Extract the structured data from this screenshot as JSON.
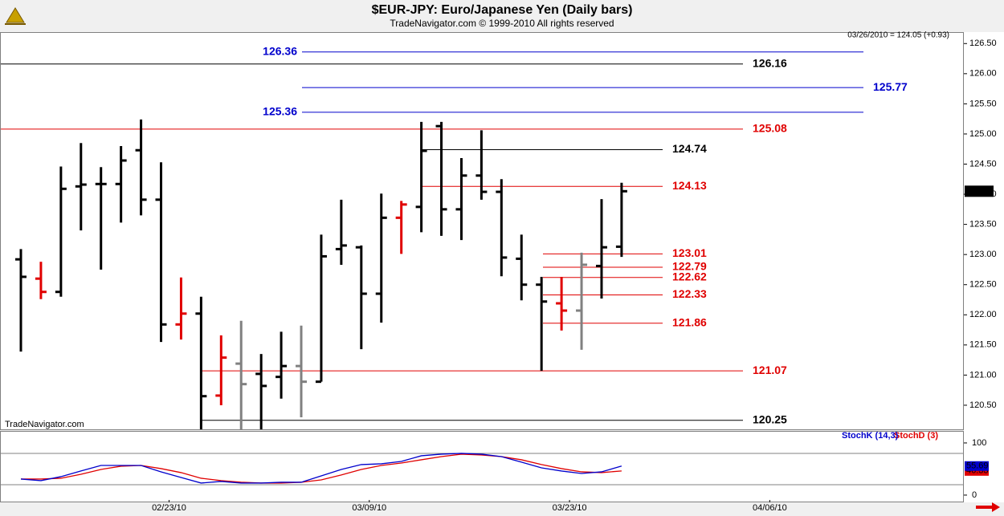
{
  "chart_data": [
    {
      "type": "ohlc",
      "title": "$EUR-JPY:  Euro/Japanese Yen  (Daily bars)",
      "subtitle": "TradeNavigator.com © 1999-2010 All rights reserved",
      "info": "03/26/2010 = 124.05 (+0.93)",
      "watermark": "TradeNavigator.com",
      "last_price": 124.05,
      "ylim": [
        120.1,
        126.69
      ],
      "yticks": [
        {
          "value": 120.5,
          "label": "120.50"
        },
        {
          "value": 121,
          "label": "121.00"
        },
        {
          "value": 121.5,
          "label": "121.50"
        },
        {
          "value": 122,
          "label": "122.00"
        },
        {
          "value": 122.5,
          "label": "122.50"
        },
        {
          "value": 123,
          "label": "123.00"
        },
        {
          "value": 123.5,
          "label": "123.50"
        },
        {
          "value": 124,
          "label": "124.00"
        },
        {
          "value": 124.5,
          "label": "124.50"
        },
        {
          "value": 125,
          "label": "125.00"
        },
        {
          "value": 125.5,
          "label": "125.50"
        },
        {
          "value": 126,
          "label": "126.00"
        },
        {
          "value": 126.5,
          "label": "126.50"
        }
      ],
      "xticks": [
        {
          "value": 7.4,
          "label": "02/23/10"
        },
        {
          "value": 17.4,
          "label": "03/09/10"
        },
        {
          "value": 27.4,
          "label": "03/23/10"
        },
        {
          "value": 37.4,
          "label": "04/06/10"
        }
      ],
      "bars": {
        "open": [
          122.92,
          122.6,
          122.38,
          124.13,
          124.17,
          124.17,
          124.73,
          123.91,
          121.84,
          122.02,
          120.66,
          121.19,
          121.02,
          120.97,
          121.15,
          120.89,
          123.09,
          123.12,
          122.35,
          123.61,
          123.79,
          125.13,
          123.75,
          124.31,
          124.04,
          122.93,
          122.5,
          122.19,
          122.07,
          122.81,
          123.13
        ],
        "high": [
          123.09,
          122.88,
          124.46,
          124.85,
          124.45,
          124.8,
          125.24,
          124.53,
          122.62,
          122.3,
          121.66,
          121.9,
          121.35,
          121.72,
          121.82,
          123.33,
          123.91,
          123.15,
          124.01,
          123.89,
          125.2,
          125.2,
          124.6,
          125.06,
          124.25,
          123.33,
          122.63,
          122.63,
          123.03,
          123.92,
          124.19
        ],
        "low": [
          121.39,
          122.26,
          122.3,
          123.4,
          122.75,
          123.53,
          123.65,
          121.55,
          121.59,
          120.1,
          120.5,
          120.1,
          120.1,
          120.61,
          120.3,
          120.89,
          122.83,
          121.43,
          121.87,
          123.01,
          123.37,
          123.31,
          123.24,
          123.91,
          122.64,
          122.24,
          121.07,
          121.74,
          121.42,
          122.27,
          122.96
        ],
        "close": [
          122.63,
          122.38,
          124.09,
          124.16,
          124.17,
          124.56,
          123.91,
          121.84,
          122.02,
          120.65,
          121.29,
          120.85,
          120.82,
          121.15,
          120.89,
          122.97,
          123.15,
          122.35,
          123.61,
          123.83,
          124.72,
          123.75,
          124.31,
          124.04,
          122.95,
          122.5,
          122.22,
          122.07,
          122.83,
          123.12,
          124.05
        ],
        "colors": [
          "#000000",
          "#e00000",
          "#000000",
          "#000000",
          "#000000",
          "#000000",
          "#000000",
          "#000000",
          "#e00000",
          "#000000",
          "#e00000",
          "#808080",
          "#000000",
          "#000000",
          "#808080",
          "#000000",
          "#000000",
          "#000000",
          "#000000",
          "#e00000",
          "#000000",
          "#000000",
          "#000000",
          "#000000",
          "#000000",
          "#000000",
          "#000000",
          "#e00000",
          "#808080",
          "#000000",
          "#000000"
        ]
      },
      "levels": [
        {
          "value": 126.36,
          "color": "#0000cc"
        },
        {
          "value": 126.16,
          "color": "#000000"
        },
        {
          "value": 125.77,
          "color": "#0000cc"
        },
        {
          "value": 125.36,
          "color": "#0000cc"
        },
        {
          "value": 125.08,
          "color": "#e00000"
        },
        {
          "value": 124.74,
          "color": "#000000"
        },
        {
          "value": 124.13,
          "color": "#e00000"
        },
        {
          "value": 123.01,
          "color": "#e00000"
        },
        {
          "value": 122.79,
          "color": "#e00000"
        },
        {
          "value": 122.62,
          "color": "#e00000"
        },
        {
          "value": 122.33,
          "color": "#e00000"
        },
        {
          "value": 121.86,
          "color": "#e00000"
        },
        {
          "value": 121.07,
          "color": "#e00000"
        },
        {
          "value": 120.25,
          "color": "#000000"
        }
      ]
    },
    {
      "type": "line",
      "ylim": [
        -17,
        123
      ],
      "yticks": [
        0,
        100
      ],
      "levels": [
        20,
        80
      ],
      "series": [
        {
          "name": "StochD (3)",
          "color": "#e00000",
          "values": [
            30.8,
            30.8,
            32.3,
            40,
            49.2,
            55.4,
            56.9,
            50.8,
            43.1,
            32.3,
            27.7,
            24.6,
            23.1,
            23.1,
            24.6,
            29.2,
            38.5,
            49.2,
            56.9,
            61.5,
            67.7,
            73.8,
            78.5,
            76.9,
            73.8,
            67.7,
            58.5,
            50.8,
            44.6,
            43.1,
            46.33
          ]
        },
        {
          "name": "StochK (14,3)",
          "color": "#0000cc",
          "values": [
            30.8,
            27.7,
            35.4,
            46.2,
            56.9,
            56.9,
            56.9,
            44.6,
            33.8,
            23.1,
            26.2,
            23.1,
            23.1,
            24.6,
            24.6,
            36.9,
            49.2,
            58.5,
            60,
            64.6,
            75.4,
            78.5,
            80,
            78.5,
            73.8,
            63.1,
            52.3,
            46.2,
            41.5,
            44.6,
            55.69
          ]
        }
      ]
    }
  ]
}
